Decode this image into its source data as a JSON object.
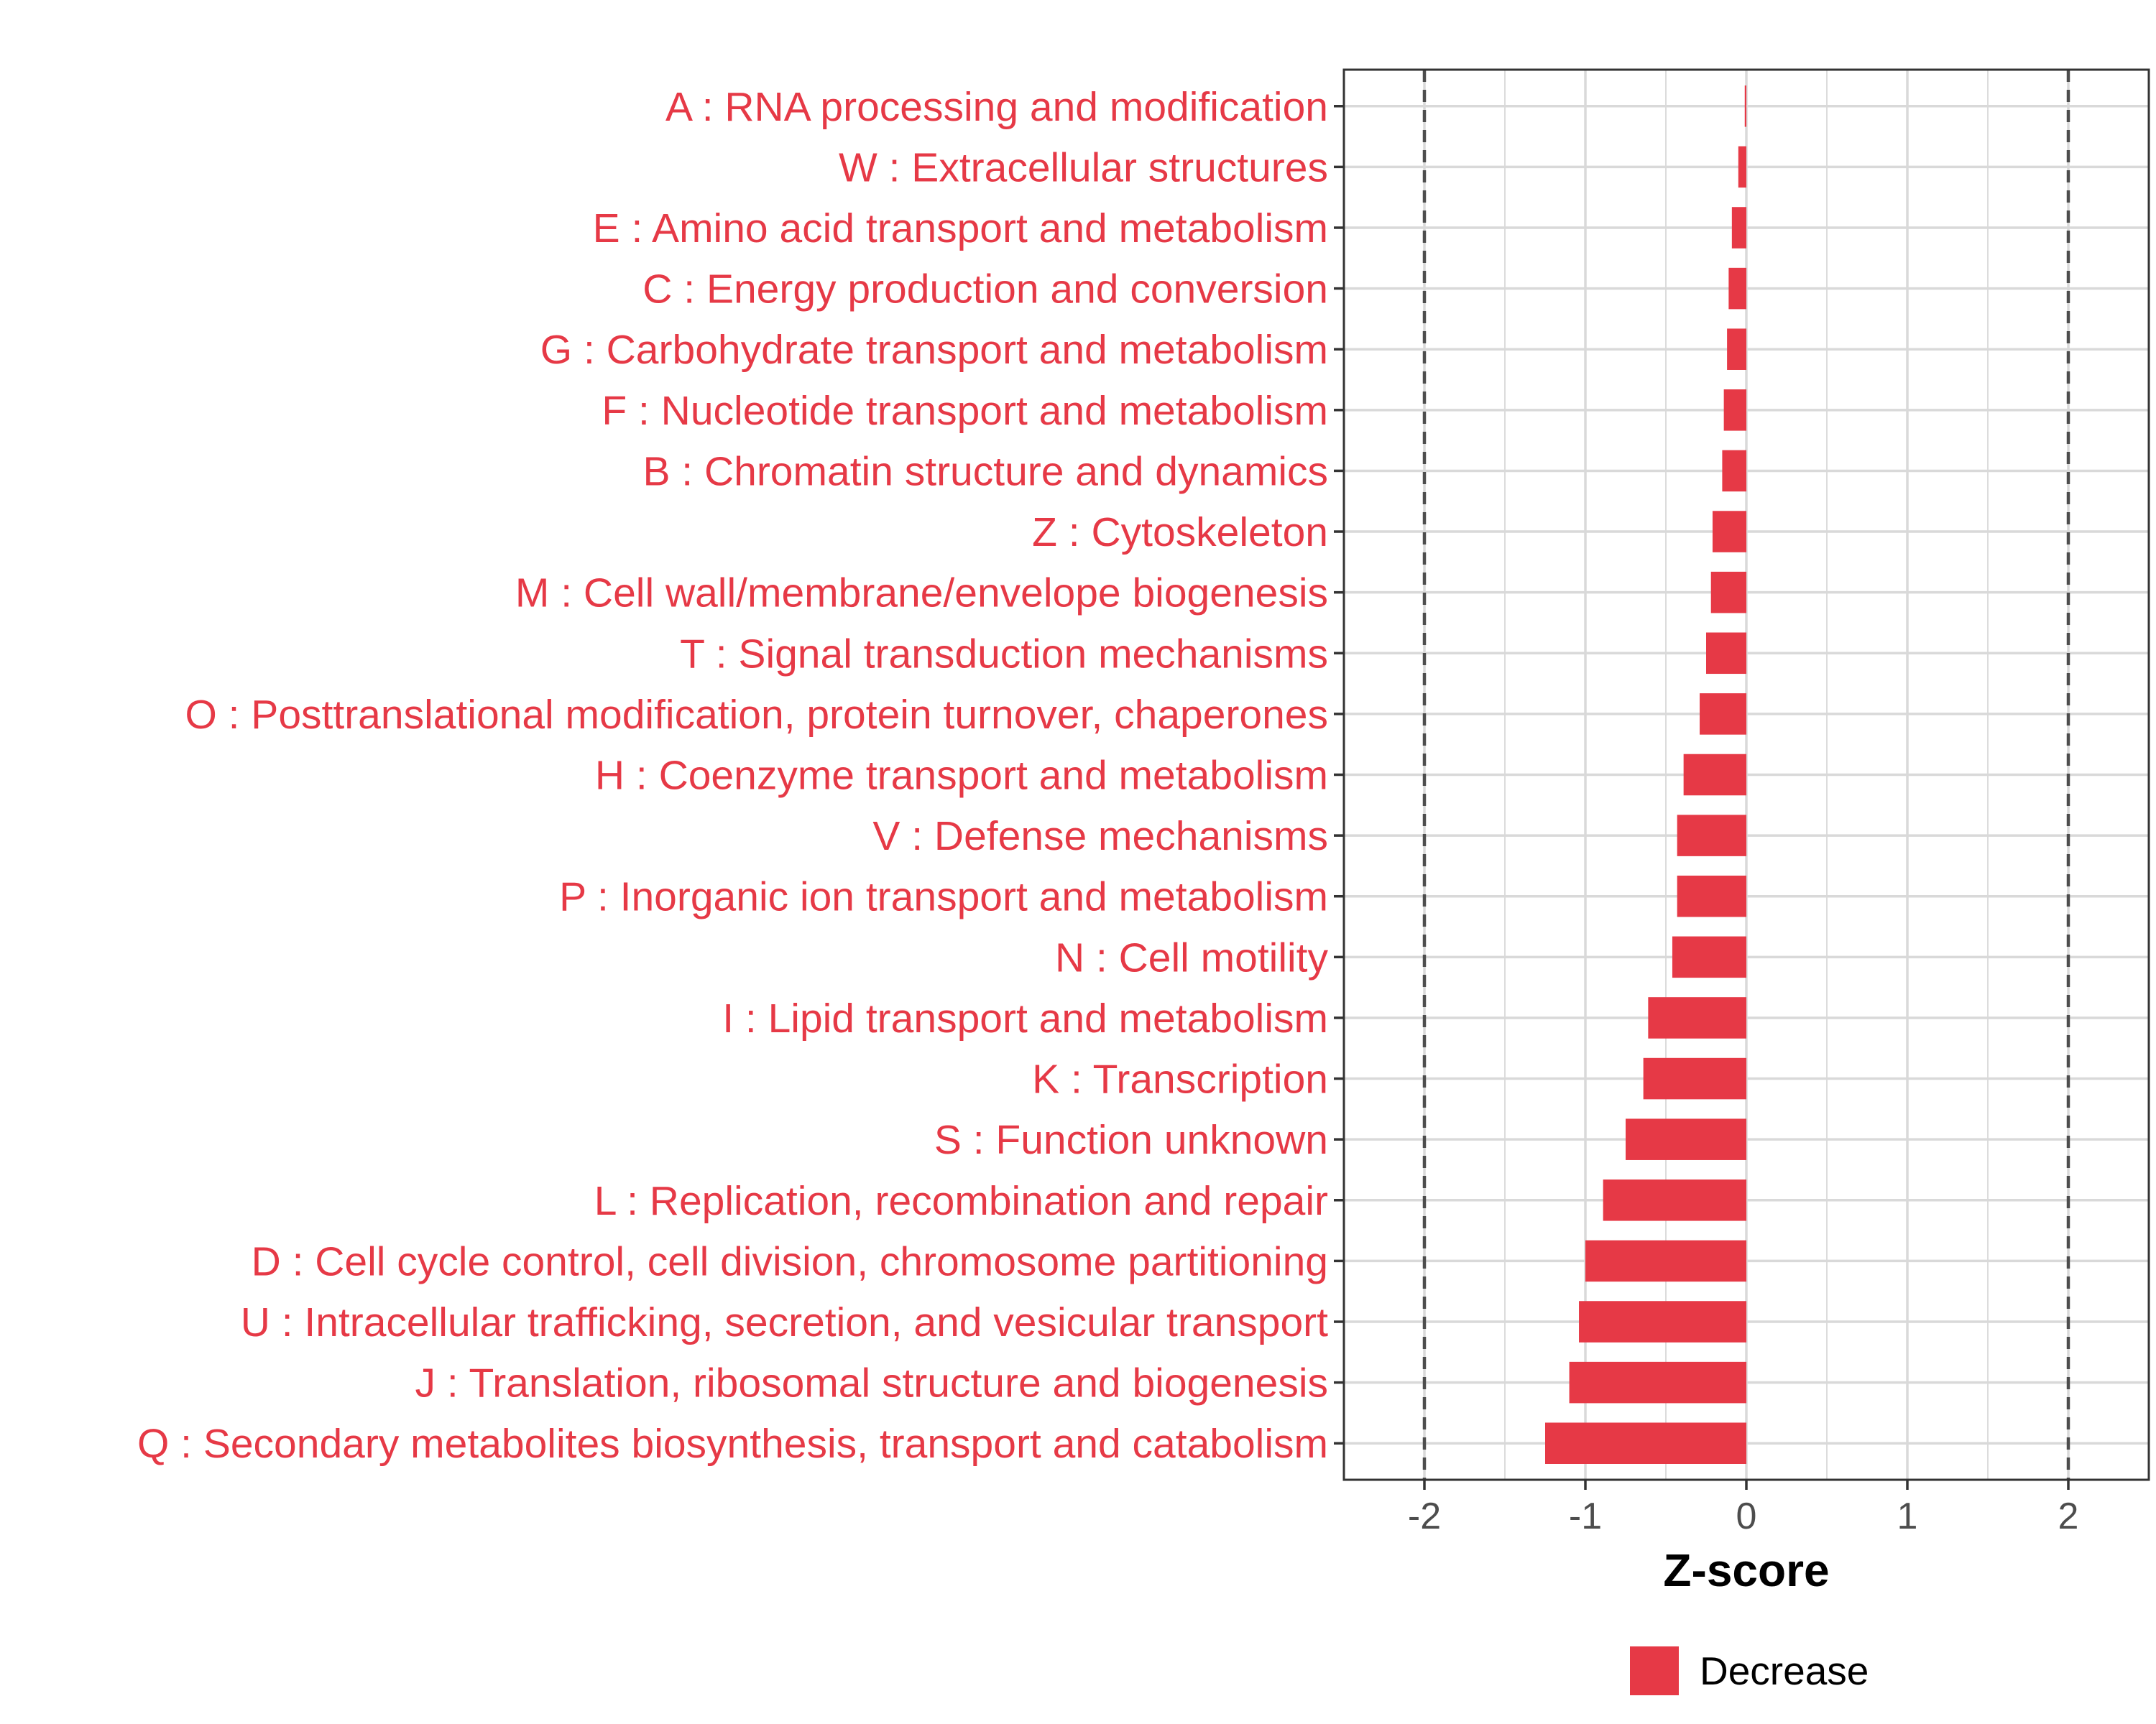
{
  "chart_data": {
    "type": "bar",
    "orientation": "horizontal",
    "categories": [
      "A : RNA processing and modification",
      "W : Extracellular structures",
      "E : Amino acid transport and metabolism",
      "C : Energy production and conversion",
      "G : Carbohydrate transport and metabolism",
      "F : Nucleotide transport and metabolism",
      "B : Chromatin structure and dynamics",
      "Z : Cytoskeleton",
      "M : Cell wall/membrane/envelope biogenesis",
      "T : Signal transduction mechanisms",
      "O : Posttranslational modification, protein turnover, chaperones",
      "H : Coenzyme transport and metabolism",
      "V : Defense mechanisms",
      "P : Inorganic ion transport and metabolism",
      "N : Cell motility",
      "I : Lipid transport and metabolism",
      "K : Transcription",
      "S : Function unknown",
      "L : Replication, recombination and repair",
      "D : Cell cycle control, cell division, chromosome partitioning",
      "U : Intracellular trafficking, secretion, and vesicular transport",
      "J : Translation, ribosomal structure and biogenesis",
      "Q : Secondary metabolites biosynthesis, transport and catabolism"
    ],
    "values": [
      -0.01,
      -0.05,
      -0.09,
      -0.11,
      -0.12,
      -0.14,
      -0.15,
      -0.21,
      -0.22,
      -0.25,
      -0.29,
      -0.39,
      -0.43,
      -0.43,
      -0.46,
      -0.61,
      -0.64,
      -0.75,
      -0.89,
      -1.0,
      -1.04,
      -1.1,
      -1.25
    ],
    "xlabel": "Z-score",
    "ylabel": "",
    "xlim": [
      -2.5,
      2.5
    ],
    "xticks": [
      -2,
      -1,
      0,
      1,
      2
    ],
    "xtick_labels": [
      "-2",
      "-1",
      "0",
      "1",
      "2"
    ],
    "reference_lines": [
      -2,
      2
    ],
    "grid": true,
    "legend": {
      "position": "bottom",
      "entries": [
        "Decrease"
      ]
    },
    "colors": {
      "bar": "#e63946",
      "label": "#e63946",
      "grid": "#d9d9d9",
      "reference_line": "#4d4d4d",
      "axis_text": "#4d4d4d",
      "panel_border": "#333333"
    }
  }
}
